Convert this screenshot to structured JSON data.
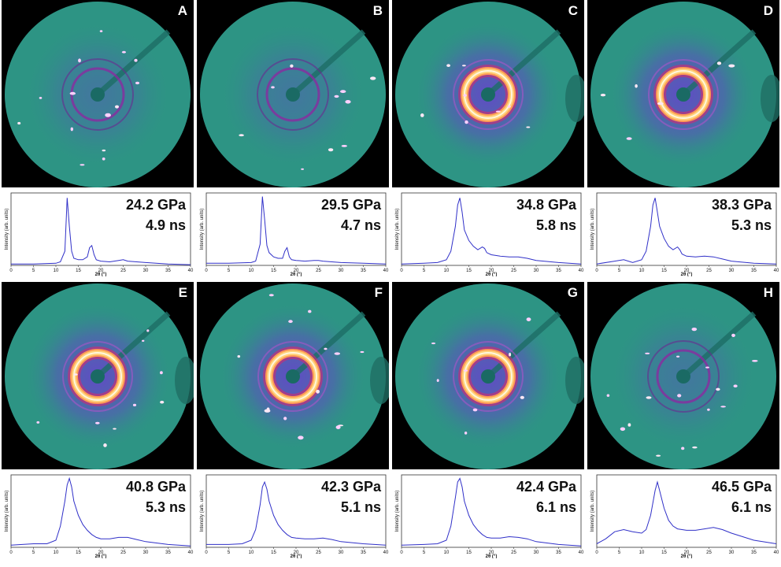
{
  "panels": [
    {
      "letter": "A",
      "pressure": "24.2 GPa",
      "time": "4.9 ns",
      "ring_intensity": 0.25,
      "spots": 14,
      "bright_ring": false
    },
    {
      "letter": "B",
      "pressure": "29.5 GPa",
      "time": "4.7 ns",
      "ring_intensity": 0.3,
      "spots": 10,
      "bright_ring": false
    },
    {
      "letter": "C",
      "pressure": "34.8 GPa",
      "time": "5.8 ns",
      "ring_intensity": 1.0,
      "spots": 8,
      "bright_ring": true
    },
    {
      "letter": "D",
      "pressure": "38.3 GPa",
      "time": "5.3 ns",
      "ring_intensity": 1.0,
      "spots": 6,
      "bright_ring": true
    },
    {
      "letter": "E",
      "pressure": "40.8 GPa",
      "time": "5.3 ns",
      "ring_intensity": 1.0,
      "spots": 10,
      "bright_ring": true
    },
    {
      "letter": "F",
      "pressure": "42.3 GPa",
      "time": "5.1 ns",
      "ring_intensity": 1.0,
      "spots": 14,
      "bright_ring": true
    },
    {
      "letter": "G",
      "pressure": "42.4 GPa",
      "time": "6.1 ns",
      "ring_intensity": 1.0,
      "spots": 8,
      "bright_ring": true
    },
    {
      "letter": "H",
      "pressure": "46.5 GPa",
      "time": "6.1 ns",
      "ring_intensity": 0.2,
      "spots": 18,
      "bright_ring": false
    }
  ],
  "colors": {
    "background": "#2d9484",
    "glow": "#6a3fd0",
    "ring": "#ffd27a",
    "line": "#3030c8"
  },
  "plot_axis": {
    "ylabel": "Intensity (arb. units)",
    "xlabel": "2θ (°)",
    "xticks": [
      "0",
      "5",
      "10",
      "15",
      "20",
      "25",
      "30",
      "35",
      "40"
    ],
    "xlim": [
      0,
      40
    ]
  },
  "chart_data": [
    {
      "type": "line",
      "panel": "A",
      "x": [
        0,
        5,
        10,
        11,
        12,
        12.5,
        13,
        13.5,
        14,
        15,
        16,
        17,
        17.5,
        18,
        18.5,
        19,
        20,
        22,
        24,
        25,
        26,
        28,
        30,
        35,
        40
      ],
      "y": [
        0.02,
        0.02,
        0.03,
        0.05,
        0.2,
        0.95,
        0.55,
        0.2,
        0.1,
        0.08,
        0.08,
        0.12,
        0.25,
        0.28,
        0.15,
        0.08,
        0.06,
        0.05,
        0.07,
        0.08,
        0.06,
        0.05,
        0.04,
        0.02,
        0.01
      ]
    },
    {
      "type": "line",
      "panel": "B",
      "x": [
        0,
        5,
        10,
        11,
        12,
        12.5,
        13,
        13.5,
        14,
        15,
        16,
        17,
        17.5,
        18,
        18.5,
        19,
        20,
        22,
        24,
        25,
        26,
        28,
        30,
        35,
        40
      ],
      "y": [
        0.03,
        0.03,
        0.04,
        0.06,
        0.3,
        0.97,
        0.65,
        0.28,
        0.18,
        0.12,
        0.1,
        0.1,
        0.2,
        0.25,
        0.12,
        0.08,
        0.07,
        0.06,
        0.07,
        0.07,
        0.06,
        0.05,
        0.04,
        0.03,
        0.02
      ]
    },
    {
      "type": "line",
      "panel": "C",
      "x": [
        0,
        5,
        8,
        10,
        11,
        12,
        12.5,
        13,
        13.5,
        14,
        15,
        16,
        17,
        18,
        18.5,
        19,
        20,
        22,
        24,
        26,
        28,
        30,
        35,
        40
      ],
      "y": [
        0.02,
        0.03,
        0.04,
        0.08,
        0.2,
        0.55,
        0.85,
        0.95,
        0.75,
        0.5,
        0.35,
        0.27,
        0.22,
        0.26,
        0.24,
        0.18,
        0.15,
        0.13,
        0.12,
        0.12,
        0.1,
        0.07,
        0.04,
        0.02
      ]
    },
    {
      "type": "line",
      "panel": "D",
      "x": [
        0,
        4,
        6,
        8,
        10,
        11,
        12,
        12.5,
        13,
        13.5,
        14,
        15,
        16,
        17,
        18,
        18.5,
        19,
        20,
        22,
        24,
        26,
        28,
        30,
        35,
        40
      ],
      "y": [
        0.02,
        0.06,
        0.08,
        0.04,
        0.08,
        0.2,
        0.55,
        0.85,
        0.95,
        0.75,
        0.55,
        0.38,
        0.27,
        0.22,
        0.26,
        0.22,
        0.16,
        0.13,
        0.12,
        0.13,
        0.12,
        0.09,
        0.06,
        0.03,
        0.02
      ]
    },
    {
      "type": "line",
      "panel": "E",
      "x": [
        0,
        5,
        8,
        10,
        11,
        12,
        12.5,
        13,
        13.5,
        14,
        15,
        16,
        17,
        18,
        19,
        20,
        22,
        24,
        26,
        28,
        30,
        35,
        40
      ],
      "y": [
        0.03,
        0.05,
        0.05,
        0.1,
        0.3,
        0.65,
        0.88,
        0.97,
        0.85,
        0.65,
        0.45,
        0.32,
        0.24,
        0.18,
        0.14,
        0.12,
        0.12,
        0.14,
        0.14,
        0.11,
        0.08,
        0.04,
        0.02
      ]
    },
    {
      "type": "line",
      "panel": "F",
      "x": [
        0,
        5,
        8,
        10,
        11,
        12,
        12.5,
        13,
        13.5,
        14,
        15,
        16,
        17,
        18,
        19,
        20,
        22,
        24,
        26,
        28,
        30,
        35,
        40
      ],
      "y": [
        0.04,
        0.04,
        0.05,
        0.1,
        0.25,
        0.6,
        0.85,
        0.92,
        0.82,
        0.65,
        0.45,
        0.32,
        0.24,
        0.18,
        0.14,
        0.13,
        0.12,
        0.12,
        0.13,
        0.11,
        0.08,
        0.05,
        0.03
      ]
    },
    {
      "type": "line",
      "panel": "G",
      "x": [
        0,
        5,
        8,
        10,
        11,
        12,
        12.5,
        13,
        13.5,
        14,
        15,
        16,
        17,
        18,
        19,
        20,
        22,
        24,
        26,
        28,
        30,
        35,
        40
      ],
      "y": [
        0.03,
        0.04,
        0.05,
        0.1,
        0.3,
        0.7,
        0.92,
        0.97,
        0.85,
        0.65,
        0.45,
        0.32,
        0.24,
        0.18,
        0.14,
        0.13,
        0.13,
        0.15,
        0.14,
        0.12,
        0.08,
        0.04,
        0.02
      ]
    },
    {
      "type": "line",
      "panel": "H",
      "x": [
        0,
        2,
        4,
        6,
        8,
        10,
        11,
        12,
        13,
        13.5,
        14,
        15,
        16,
        17,
        18,
        20,
        22,
        24,
        26,
        28,
        30,
        35,
        40
      ],
      "y": [
        0.05,
        0.12,
        0.22,
        0.25,
        0.22,
        0.2,
        0.25,
        0.45,
        0.8,
        0.92,
        0.8,
        0.55,
        0.38,
        0.3,
        0.26,
        0.24,
        0.24,
        0.26,
        0.28,
        0.25,
        0.2,
        0.1,
        0.05
      ]
    }
  ]
}
